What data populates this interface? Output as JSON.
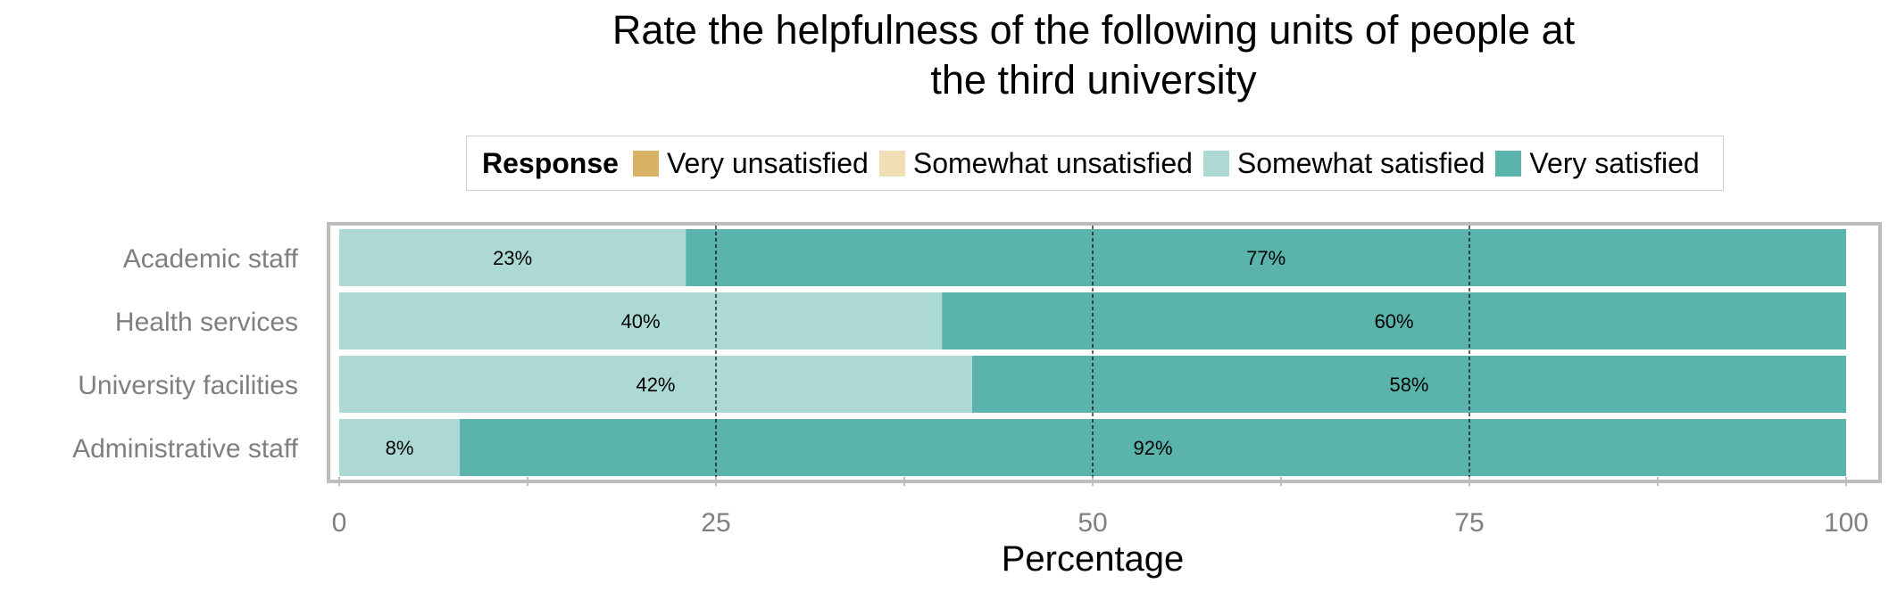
{
  "chart_data": {
    "type": "bar",
    "orientation": "horizontal",
    "stacked": true,
    "title": "Rate the helpfulness of the following units of people at the third university",
    "title_lines": [
      "Rate the helpfulness of the following units of people at",
      "the third university"
    ],
    "xlabel": "Percentage",
    "ylabel": "",
    "xlim": [
      0,
      100
    ],
    "xticks": [
      0,
      25,
      50,
      75,
      100
    ],
    "categories": [
      "Academic staff",
      "Health services",
      "University facilities",
      "Administrative staff"
    ],
    "legend_title": "Response",
    "legend_placement": "top",
    "series": [
      {
        "name": "Very unsatisfied",
        "color": "#D8B365",
        "values": [
          0,
          0,
          0,
          0
        ]
      },
      {
        "name": "Somewhat unsatisfied",
        "color": "#F0DEB6",
        "values": [
          0,
          0,
          0,
          0
        ]
      },
      {
        "name": "Somewhat satisfied",
        "color": "#ADD9D5",
        "values": [
          23,
          40,
          42,
          8
        ]
      },
      {
        "name": "Very satisfied",
        "color": "#5AB4AC",
        "values": [
          77,
          60,
          58,
          92
        ]
      }
    ],
    "data_labels": [
      [
        "",
        "",
        "23%",
        "77%"
      ],
      [
        "",
        "",
        "40%",
        "60%"
      ],
      [
        "",
        "",
        "42%",
        "58%"
      ],
      [
        "",
        "",
        "8%",
        "92%"
      ]
    ],
    "grid": "dashed vertical lines at major ticks"
  }
}
